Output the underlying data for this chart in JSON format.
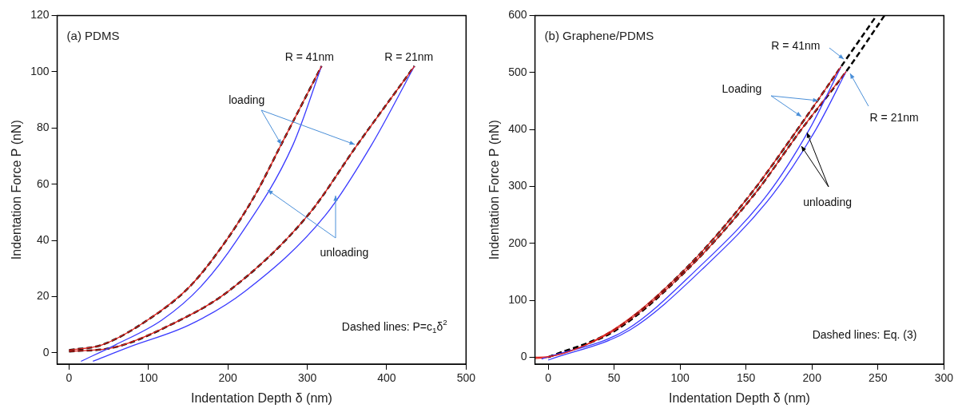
{
  "chart_data": [
    {
      "type": "line",
      "title": "(a) PDMS",
      "xlabel": "Indentation Depth δ (nm)",
      "ylabel": "Indentation Force P (nN)",
      "xlim": [
        -15,
        500
      ],
      "ylim": [
        -4,
        120
      ],
      "xticks": [
        0,
        100,
        200,
        300,
        400,
        500
      ],
      "yticks": [
        0,
        20,
        40,
        60,
        80,
        100,
        120
      ],
      "line_style": "solid",
      "marker": "none",
      "series": [
        {
          "color": "#e0201b",
          "x": [
            0,
            41,
            99,
            152,
            198,
            236,
            267,
            318
          ],
          "values": [
            1,
            2.8,
            11.7,
            23.6,
            40,
            57,
            74,
            102
          ]
        },
        {
          "color": "#3b3bff",
          "x": [
            15,
            58,
            117,
            166,
            211,
            282,
            318
          ],
          "values": [
            -3,
            2.8,
            11.7,
            23.6,
            40,
            74,
            102
          ]
        },
        {
          "color": "#e0201b",
          "x": [
            0,
            58,
            128,
            201,
            301,
            363,
            435
          ],
          "values": [
            0.5,
            2,
            10,
            22,
            49,
            74,
            102
          ]
        },
        {
          "color": "#3b3bff",
          "x": [
            30,
            75,
            152,
            222,
            323,
            381,
            435
          ],
          "values": [
            -3,
            2,
            10,
            22,
            49,
            74,
            102
          ]
        },
        {
          "color": "#000000",
          "line_style": "dashed",
          "x": [
            0,
            41,
            99,
            152,
            198,
            236,
            267,
            318
          ],
          "values": [
            1,
            2.8,
            11.7,
            23.6,
            40,
            57,
            74,
            102
          ]
        },
        {
          "color": "#000000",
          "line_style": "dashed",
          "x": [
            0,
            58,
            128,
            201,
            301,
            363,
            435
          ],
          "values": [
            0.5,
            2,
            10,
            22,
            49,
            74,
            102
          ]
        }
      ],
      "annotations": [
        "R = 41nm",
        "R = 21nm",
        {
          "text": "loading",
          "x": 267,
          "y": 74
        },
        {
          "text": "unloading",
          "x": 250,
          "y": 58
        },
        "Dashed lines: P=c$_{1}$δ$^{2}$"
      ]
    },
    {
      "type": "line",
      "title": "(b) Graphene/PDMS",
      "xlabel": "Indentation Depth δ (nm)",
      "ylabel": "Indentation Force P (nN)",
      "xlim": [
        -10,
        300
      ],
      "ylim": [
        -12,
        600
      ],
      "xticks": [
        0,
        50,
        100,
        150,
        200,
        250,
        300
      ],
      "yticks": [
        0,
        100,
        200,
        300,
        400,
        500,
        600
      ],
      "line_style": "solid",
      "marker": "none",
      "series": [
        {
          "color": "#e0201b",
          "x": [
            -10,
            0,
            49,
            104,
            153,
            189,
            222
          ],
          "values": [
            0,
            1,
            48,
            155,
            285,
            400,
            510
          ]
        },
        {
          "color": "#3b3bff",
          "x": [
            -5,
            59,
            113,
            166,
            198,
            222
          ],
          "values": [
            -3,
            48,
            155,
            285,
            400,
            510
          ]
        },
        {
          "color": "#e0201b",
          "x": [
            -10,
            0,
            50,
            106,
            156,
            192,
            226
          ],
          "values": [
            -2,
            0,
            47,
            155,
            285,
            400,
            502
          ]
        },
        {
          "color": "#3b3bff",
          "x": [
            0,
            62,
            117,
            170,
            203,
            226
          ],
          "values": [
            -5,
            48,
            155,
            285,
            400,
            502
          ]
        },
        {
          "color": "#000000",
          "line_style": "dashed",
          "x": [
            0,
            50,
            104,
            153,
            189,
            222,
            249
          ],
          "values": [
            0,
            48,
            155,
            285,
            400,
            510,
            600
          ]
        },
        {
          "color": "#000000",
          "line_style": "dashed",
          "x": [
            0,
            51,
            106,
            156,
            192,
            226,
            255
          ],
          "values": [
            0,
            47,
            155,
            285,
            400,
            502,
            600
          ]
        }
      ],
      "annotations": [
        {
          "text": "R = 41nm",
          "x": 224,
          "y": 523
        },
        {
          "text": "R = 21nm",
          "x": 229,
          "y": 498
        },
        {
          "text": "Loading",
          "x": 205,
          "y": 450
        },
        {
          "text": "unloading",
          "x": 196,
          "y": 395
        },
        "Dashed lines: Eq. (3)"
      ]
    }
  ]
}
